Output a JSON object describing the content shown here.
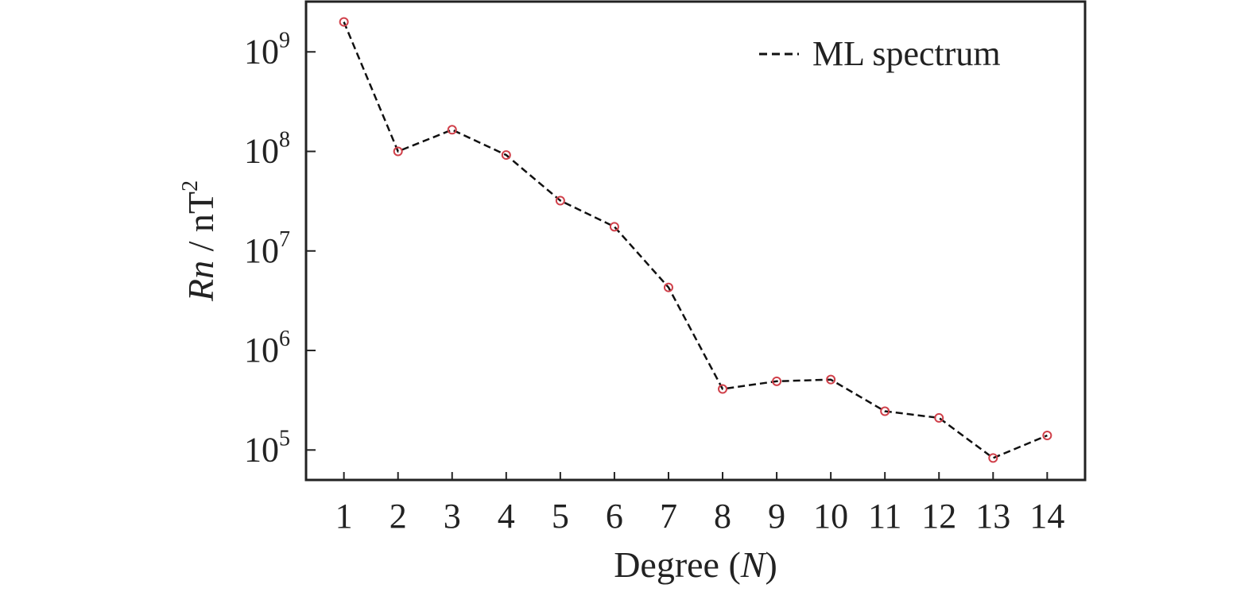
{
  "chart_data": {
    "type": "line",
    "title": "",
    "xlabel": {
      "prefix": "Degree (",
      "italic": "N",
      "suffix": ")"
    },
    "ylabel": {
      "italic": "Rn",
      "unit": " / nT",
      "unit_sup": "2"
    },
    "x": [
      1,
      2,
      3,
      4,
      5,
      6,
      7,
      8,
      9,
      10,
      11,
      12,
      13,
      14
    ],
    "xticks": [
      "1",
      "2",
      "3",
      "4",
      "5",
      "6",
      "7",
      "8",
      "9",
      "10",
      "11",
      "12",
      "13",
      "14"
    ],
    "yscale": "log",
    "yticks": [
      {
        "base": "10",
        "exp": "5",
        "value": 100000
      },
      {
        "base": "10",
        "exp": "6",
        "value": 1000000
      },
      {
        "base": "10",
        "exp": "7",
        "value": 10000000
      },
      {
        "base": "10",
        "exp": "8",
        "value": 100000000
      },
      {
        "base": "10",
        "exp": "9",
        "value": 1000000000
      }
    ],
    "ylim": [
      50000,
      3200000000
    ],
    "xlim": [
      0.3,
      14.7
    ],
    "series": [
      {
        "name": "ML spectrum",
        "line_style": "dashed",
        "line_color": "#111111",
        "marker": "circle",
        "marker_color": "#d0404a",
        "values": [
          2000000000,
          100000000,
          165000000,
          92000000,
          32000000,
          17500000,
          4300000,
          410000,
          490000,
          510000,
          245000,
          210000,
          83000,
          140000
        ]
      }
    ],
    "legend_position": "top-right",
    "grid": false
  }
}
